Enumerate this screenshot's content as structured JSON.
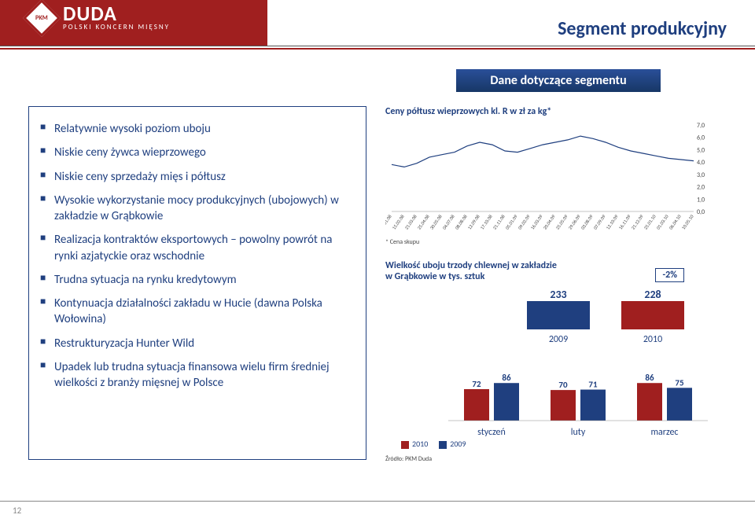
{
  "logo": {
    "brand": "DUDA",
    "tagline": "POLSKI KONCERN MIĘSNY",
    "badge": "PKM"
  },
  "slide_title": "Segment produkcyjny",
  "segment_label": "Dane dotyczące segmentu",
  "page_number": "12",
  "bullets": [
    "Relatywnie wysoki poziom uboju",
    "Niskie ceny żywca wieprzowego",
    "Niskie ceny sprzedaży mięs i półtusz",
    "Wysokie wykorzystanie mocy produkcyjnych (ubojowych) w zakładzie w Grąbkowie",
    "Realizacja kontraktów eksportowych – powolny powrót na rynki azjatyckie oraz wschodnie",
    "Trudna sytuacja na rynku kredytowym",
    "Kontynuacja działalności zakładu w Hucie (dawna Polska Wołowina)",
    "Restrukturyzacja Hunter Wild",
    "Upadek lub trudna sytuacja finansowa wielu firm średniej wielkości z branży mięsnej w Polsce"
  ],
  "line_chart": {
    "type": "line",
    "title": "Ceny półtusz wieprzowych kl. R w zł za kg*",
    "footnote_left": "* Cena skupu",
    "y_ticks": [
      "0,0",
      "1,0",
      "2,0",
      "3,0",
      "4,0",
      "5,0",
      "6,0",
      "7,0"
    ],
    "ylim": [
      0,
      7
    ],
    "x_labels": [
      "11.01.08",
      "15.02.08",
      "21.03.08",
      "25.04.08",
      "30.05.08",
      "04.07.08",
      "08.08.08",
      "12.09.08",
      "17.10.08",
      "21.11.08",
      "05.01.09",
      "09.02.09",
      "16.03.09",
      "20.04.09",
      "25.05.09",
      "29.06.09",
      "03.08.09",
      "07.09.09",
      "12.10.09",
      "16.11.09",
      "21.12.09",
      "25.01.10",
      "01.03.10",
      "06.04.10",
      "10.05.10"
    ],
    "values": [
      3.8,
      3.6,
      3.9,
      4.4,
      4.6,
      4.8,
      5.3,
      5.6,
      5.4,
      4.9,
      4.8,
      5.1,
      5.4,
      5.6,
      5.8,
      6.1,
      5.9,
      5.6,
      5.2,
      4.9,
      4.7,
      4.5,
      4.3,
      4.2,
      4.1
    ],
    "line_color": "#1f3f7f",
    "background_color": "#ffffff"
  },
  "bar_chart": {
    "type": "bar",
    "title_line1": "Wielkość uboju trzody chlewnej w zakładzie",
    "title_line2": "w Grąbkowie w tys. sztuk",
    "pct_change": "-2%",
    "totals_2009": 233,
    "totals_2010": 228,
    "totals_label_2009": "2009",
    "totals_label_2010": "2010",
    "categories": [
      "styczeń",
      "luty",
      "marzec"
    ],
    "series_2010": [
      72,
      70,
      86
    ],
    "series_2009": [
      86,
      71,
      75
    ],
    "color_2010": "#a01f1f",
    "color_2009": "#1f3f7f",
    "legend_2010": "2010",
    "legend_2009": "2009",
    "source": "Źródło: PKM Duda"
  }
}
